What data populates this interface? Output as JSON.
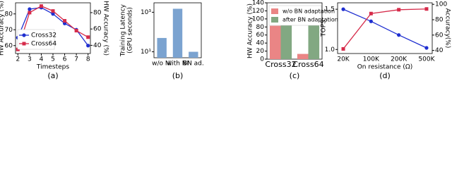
{
  "chart_data": [
    {
      "type": "line",
      "caption": "(a)",
      "xlabel": "Timesteps",
      "ylabel": "HW Accuracy (%)",
      "y2label": "HW Accuracy (%)",
      "x": [
        2,
        3,
        4,
        5,
        6,
        7,
        8
      ],
      "xlim": [
        1.8,
        8.2
      ],
      "xticks": [
        2,
        3,
        4,
        5,
        6,
        7,
        8
      ],
      "ylim": [
        55,
        87
      ],
      "yticks": [
        60,
        70,
        80
      ],
      "y2lim": [
        30,
        92
      ],
      "y2ticks": [
        40,
        60,
        80
      ],
      "legend": "center left",
      "series": [
        {
          "name": "Cross32",
          "color": "#1f2fd0",
          "marker": "o",
          "values": [
            65,
            83,
            84,
            80,
            74,
            70,
            60
          ]
        },
        {
          "name": "Cross64",
          "color": "#d62b4a",
          "marker": "s",
          "axis": "y2",
          "values": [
            35,
            80,
            88,
            82,
            70,
            58,
            50
          ]
        }
      ]
    },
    {
      "type": "bar",
      "caption": "(b)",
      "ylabel": [
        "Training Latency",
        "(GPU seconds)"
      ],
      "log_scale": true,
      "categories": [
        "w/o NI",
        "with NI",
        "BN ad."
      ],
      "values": [
        50,
        1500,
        10
      ],
      "color": "#7ba3d0",
      "ylim": [
        5,
        3000
      ],
      "yticks": [
        {
          "value": 10,
          "label": "10¹"
        },
        {
          "value": 1000,
          "label": "10³"
        }
      ]
    },
    {
      "type": "bar",
      "caption": "(c)",
      "ylabel": "HW Accuracy (%)",
      "categories": [
        "Cross32",
        "Cross64"
      ],
      "ylim": [
        0,
        140
      ],
      "yticks": [
        0,
        20,
        40,
        60,
        80,
        100,
        120,
        140
      ],
      "legend": "upper left",
      "series": [
        {
          "name": "w/o BN adaptation",
          "color": "#ea8585",
          "values": [
            83,
            13
          ]
        },
        {
          "name": "after BN adaptation",
          "color": "#82a882",
          "values": [
            92,
            92
          ]
        }
      ]
    },
    {
      "type": "line",
      "caption": "(d)",
      "xlabel": "On resistance (Ω)",
      "ylabel": "TOPS",
      "y2label": "Accuracy(%)",
      "categories": [
        "20K",
        "100K",
        "200K",
        "500K"
      ],
      "ylim": [
        0.95,
        1.58
      ],
      "yticks": [
        {
          "value": 1,
          "label": "1.0"
        },
        1.5
      ],
      "y2lim": [
        36,
        102
      ],
      "y2ticks": [
        40,
        60,
        80,
        100
      ],
      "series": [
        {
          "color": "#1f2fd0",
          "marker": "o",
          "values": [
            1.5,
            1.35,
            1.18,
            1.02
          ]
        },
        {
          "color": "#d62b4a",
          "marker": "s",
          "axis": "y2",
          "values": [
            42,
            88,
            93,
            94
          ]
        }
      ]
    }
  ]
}
